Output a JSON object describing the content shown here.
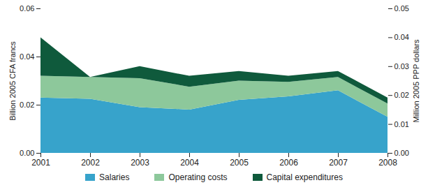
{
  "chart_data": {
    "type": "area",
    "stacked": true,
    "grid": false,
    "legend": "bottom",
    "x": [
      2001,
      2002,
      2003,
      2004,
      2005,
      2006,
      2007,
      2008
    ],
    "xlim": [
      2001,
      2008
    ],
    "xticks": [
      2001,
      2002,
      2003,
      2004,
      2005,
      2006,
      2007,
      2008
    ],
    "ylabel": "Billion 2005 CFA francs",
    "ylim": [
      0,
      0.06
    ],
    "yticks": [
      {
        "value": 0,
        "label": "0.00"
      },
      0.02,
      0.04,
      0.06
    ],
    "y2label": "Million 2005 PPP dollars",
    "y2lim": [
      0,
      0.05
    ],
    "y2ticks": [
      {
        "value": 0,
        "label": "0.00"
      },
      0.01,
      0.02,
      0.03,
      0.04,
      0.05
    ],
    "series": [
      {
        "name": "Salaries",
        "color": "#37a3cb",
        "values": [
          0.023,
          0.0225,
          0.019,
          0.018,
          0.022,
          0.0235,
          0.026,
          0.015
        ]
      },
      {
        "name": "Operating costs",
        "color": "#8dc89b",
        "values": [
          0.009,
          0.009,
          0.012,
          0.0095,
          0.008,
          0.006,
          0.0055,
          0.0055
        ]
      },
      {
        "name": "Capital expenditures",
        "color": "#0f5a3c",
        "values": [
          0.016,
          0,
          0.005,
          0.0045,
          0.004,
          0.0025,
          0.0025,
          0.0025
        ]
      }
    ]
  }
}
